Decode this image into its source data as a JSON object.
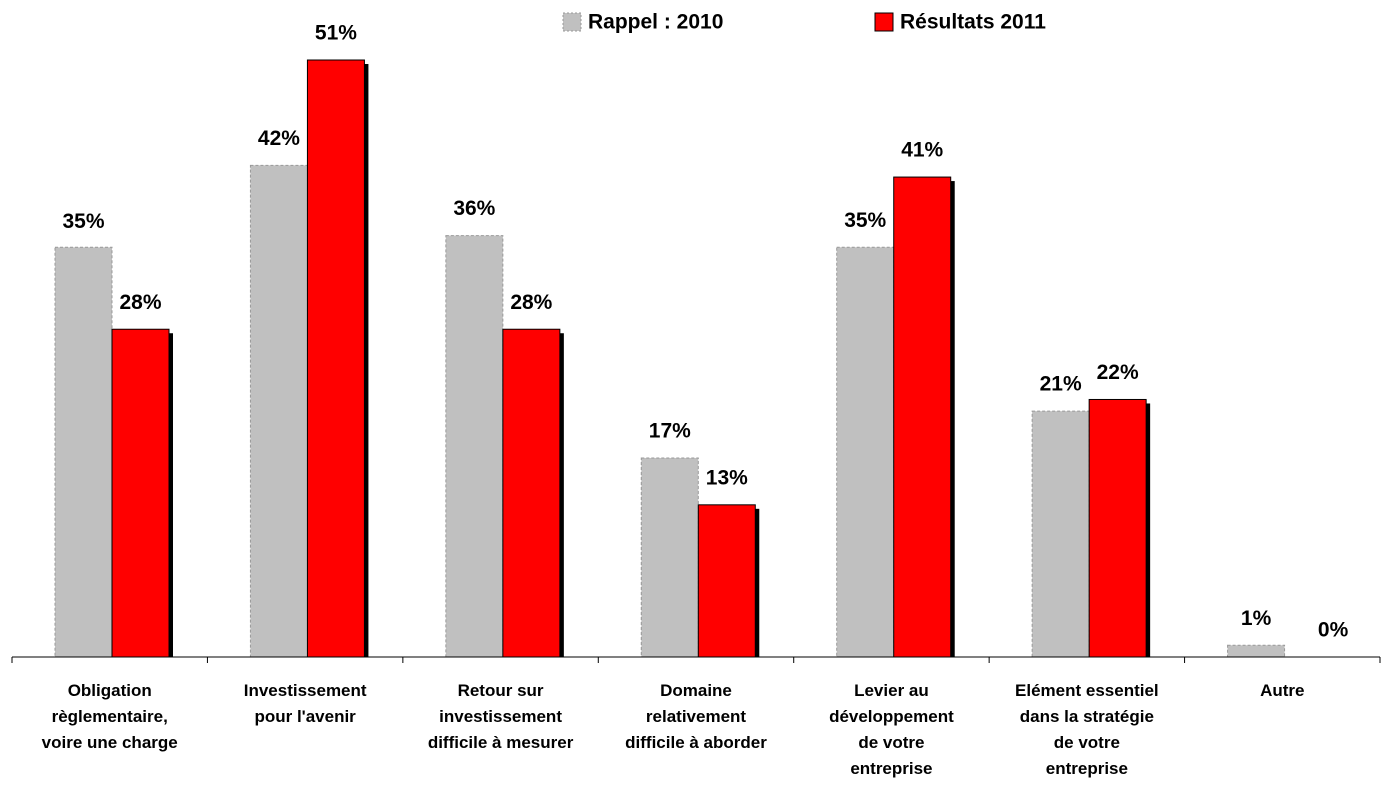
{
  "chart_data": {
    "type": "bar",
    "categories": [
      "Obligation\nrèglementaire,\nvoire une charge",
      "Investissement\npour l'avenir",
      "Retour sur\ninvestissement\ndifficile à mesurer",
      "Domaine\nrelativement\ndifficile à aborder",
      "Levier au\ndéveloppement\nde votre\nentreprise",
      "Elément essentiel\ndans la stratégie\nde votre\nentreprise",
      "Autre"
    ],
    "series": [
      {
        "name": "Rappel : 2010",
        "color": "#c0c0c0",
        "values": [
          35,
          42,
          36,
          17,
          35,
          21,
          1
        ],
        "value_labels": [
          "35%",
          "42%",
          "36%",
          "17%",
          "35%",
          "21%",
          "1%"
        ]
      },
      {
        "name": "Résultats 2011",
        "color": "#ff0000",
        "values": [
          28,
          51,
          28,
          13,
          41,
          22,
          0
        ],
        "value_labels": [
          "28%",
          "51%",
          "28%",
          "13%",
          "41%",
          "22%",
          "0%"
        ]
      }
    ],
    "legend": "top"
  }
}
